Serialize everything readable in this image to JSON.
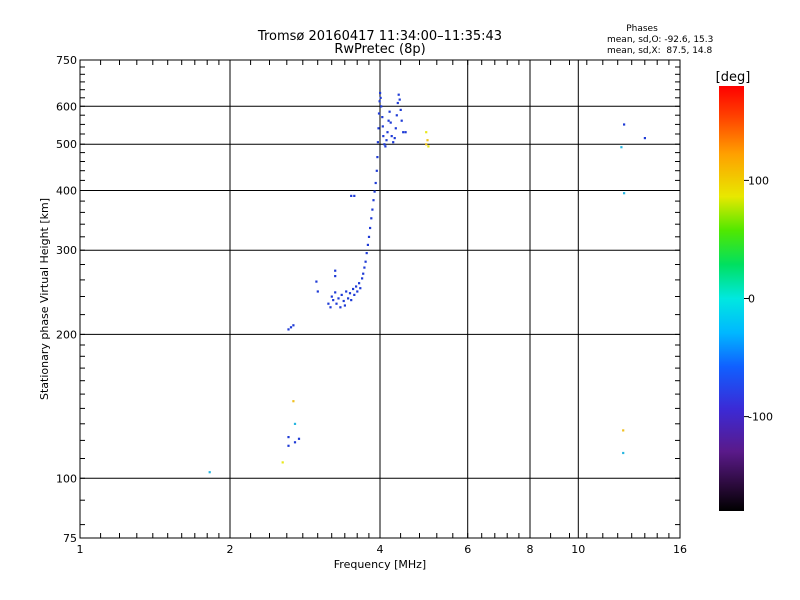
{
  "chart_data": {
    "type": "scatter",
    "title": "Tromsø 20160417 11:34:00–11:35:43",
    "subtitle": "RwPretec (8p)",
    "xlabel": "Frequency [MHz]",
    "ylabel": "Stationary phase Virtual Height [km]",
    "xscale": "log2",
    "yscale": "log",
    "xlim": [
      1,
      16
    ],
    "ylim": [
      75,
      750
    ],
    "xticks": [
      1,
      2,
      4,
      6,
      8,
      10,
      16
    ],
    "xtick_labels": [
      "1",
      "2",
      "4",
      "6",
      "8",
      "10",
      "16"
    ],
    "yticks": [
      75,
      100,
      200,
      300,
      400,
      500,
      600,
      750
    ],
    "ytick_labels": [
      "75",
      "100",
      "200",
      "300",
      "400",
      "500",
      "600",
      "750"
    ],
    "grid": true,
    "phase_info": {
      "heading": "Phases",
      "line1": "mean, sd,O: -92.6, 15.3",
      "line2": "mean, sd,X:  87.5, 14.8"
    },
    "colorbar": {
      "label": "[deg]",
      "min": -180,
      "max": 180,
      "ticks": [
        100,
        0,
        -100
      ],
      "tick_labels": [
        "100",
        "0",
        "-100"
      ]
    },
    "trace_color": "#1f3bd6",
    "trace": [
      [
        3.15,
        232
      ],
      [
        3.18,
        228
      ],
      [
        3.2,
        240
      ],
      [
        3.22,
        236
      ],
      [
        3.25,
        245
      ],
      [
        3.27,
        232
      ],
      [
        3.3,
        238
      ],
      [
        3.33,
        228
      ],
      [
        3.35,
        242
      ],
      [
        3.38,
        235
      ],
      [
        3.4,
        230
      ],
      [
        3.42,
        246
      ],
      [
        3.45,
        238
      ],
      [
        3.48,
        244
      ],
      [
        3.5,
        236
      ],
      [
        3.53,
        249
      ],
      [
        3.55,
        242
      ],
      [
        3.58,
        252
      ],
      [
        3.6,
        246
      ],
      [
        3.63,
        256
      ],
      [
        3.65,
        250
      ],
      [
        3.68,
        262
      ],
      [
        3.7,
        268
      ],
      [
        3.72,
        276
      ],
      [
        3.74,
        284
      ],
      [
        3.76,
        296
      ],
      [
        3.78,
        308
      ],
      [
        3.8,
        320
      ],
      [
        3.82,
        334
      ],
      [
        3.84,
        350
      ],
      [
        3.86,
        365
      ],
      [
        3.88,
        382
      ],
      [
        3.9,
        398
      ],
      [
        3.92,
        415
      ],
      [
        3.94,
        440
      ],
      [
        3.95,
        470
      ],
      [
        3.96,
        505
      ],
      [
        3.97,
        540
      ],
      [
        3.98,
        580
      ],
      [
        3.99,
        615
      ],
      [
        4.0,
        640
      ],
      [
        4.01,
        625
      ],
      [
        4.02,
        600
      ],
      [
        4.04,
        570
      ],
      [
        4.05,
        545
      ],
      [
        4.06,
        520
      ],
      [
        4.08,
        500
      ],
      [
        4.1,
        495
      ],
      [
        4.12,
        510
      ],
      [
        4.14,
        530
      ],
      [
        4.16,
        560
      ],
      [
        4.18,
        585
      ],
      [
        4.2,
        555
      ],
      [
        4.22,
        520
      ],
      [
        4.25,
        505
      ],
      [
        4.28,
        515
      ],
      [
        4.3,
        540
      ],
      [
        4.32,
        575
      ],
      [
        4.34,
        610
      ],
      [
        4.36,
        635
      ],
      [
        4.38,
        620
      ],
      [
        4.4,
        590
      ],
      [
        4.42,
        560
      ],
      [
        4.45,
        530
      ]
    ],
    "scatter_points": [
      {
        "x": 1.82,
        "y": 103,
        "color": "#27b6e0"
      },
      {
        "x": 2.55,
        "y": 108,
        "color": "#e8e81a"
      },
      {
        "x": 2.62,
        "y": 205,
        "color": "#1f3bd6"
      },
      {
        "x": 2.65,
        "y": 207,
        "color": "#1f3bd6"
      },
      {
        "x": 2.68,
        "y": 209,
        "color": "#1f3bd6"
      },
      {
        "x": 2.62,
        "y": 122,
        "color": "#1f3bd6"
      },
      {
        "x": 2.62,
        "y": 117,
        "color": "#1f3bd6"
      },
      {
        "x": 2.7,
        "y": 119,
        "color": "#1f3bd6"
      },
      {
        "x": 2.75,
        "y": 121,
        "color": "#1f3bd6"
      },
      {
        "x": 2.7,
        "y": 130,
        "color": "#27b6e0"
      },
      {
        "x": 2.68,
        "y": 145,
        "color": "#f0c020"
      },
      {
        "x": 2.98,
        "y": 258,
        "color": "#1f3bd6"
      },
      {
        "x": 3.0,
        "y": 246,
        "color": "#1f3bd6"
      },
      {
        "x": 3.5,
        "y": 390,
        "color": "#1f3bd6"
      },
      {
        "x": 3.55,
        "y": 390,
        "color": "#1f3bd6"
      },
      {
        "x": 3.25,
        "y": 265,
        "color": "#1f3bd6"
      },
      {
        "x": 3.25,
        "y": 272,
        "color": "#1f3bd6"
      },
      {
        "x": 4.5,
        "y": 530,
        "color": "#1f3bd6"
      },
      {
        "x": 4.95,
        "y": 530,
        "color": "#e8e81a"
      },
      {
        "x": 4.98,
        "y": 510,
        "color": "#f0c020"
      },
      {
        "x": 5.0,
        "y": 495,
        "color": "#e8e81a"
      },
      {
        "x": 4.95,
        "y": 500,
        "color": "#f0c020"
      },
      {
        "x": 12.35,
        "y": 550,
        "color": "#1f3bd6"
      },
      {
        "x": 12.2,
        "y": 493,
        "color": "#27b6e0"
      },
      {
        "x": 12.35,
        "y": 395,
        "color": "#27b6e0"
      },
      {
        "x": 13.6,
        "y": 515,
        "color": "#1f3bd6"
      },
      {
        "x": 12.3,
        "y": 126,
        "color": "#f0c020"
      },
      {
        "x": 12.3,
        "y": 113,
        "color": "#27b6e0"
      }
    ]
  }
}
